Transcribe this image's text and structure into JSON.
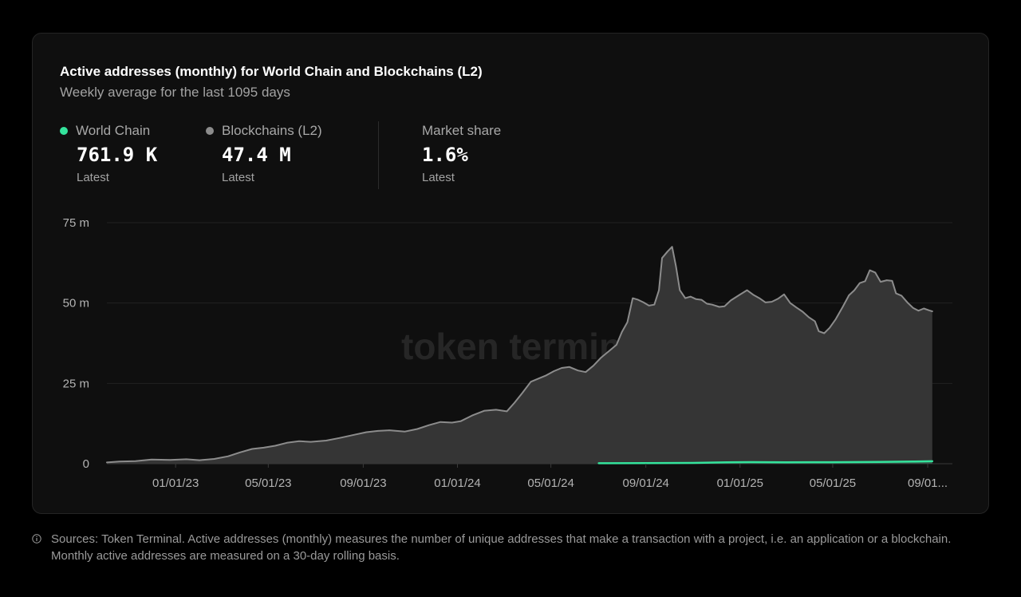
{
  "header": {
    "title": "Active addresses (monthly) for World Chain and Blockchains (L2)",
    "subtitle": "Weekly average for the last 1095 days"
  },
  "stats": [
    {
      "name": "World Chain",
      "value": "761.9 K",
      "sub": "Latest",
      "color": "#34e39c"
    },
    {
      "name": "Blockchains (L2)",
      "value": "47.4 M",
      "sub": "Latest",
      "color": "#8c8c8c"
    },
    {
      "name": "Market share",
      "value": "1.6%",
      "sub": "Latest"
    }
  ],
  "watermark": "token terminal_",
  "chart_data": {
    "type": "area",
    "ylim": [
      0,
      75000000
    ],
    "y_ticks": [
      {
        "value": 0,
        "label": "0"
      },
      {
        "value": 25000000,
        "label": "25 m"
      },
      {
        "value": 50000000,
        "label": "50 m"
      },
      {
        "value": 75000000,
        "label": "75 m"
      }
    ],
    "x_range": [
      "2022-10-04",
      "2025-10-03"
    ],
    "x_ticks": [
      {
        "date": "2023-01-01",
        "label": "01/01/23"
      },
      {
        "date": "2023-05-01",
        "label": "05/01/23"
      },
      {
        "date": "2023-09-01",
        "label": "09/01/23"
      },
      {
        "date": "2024-01-01",
        "label": "01/01/24"
      },
      {
        "date": "2024-05-01",
        "label": "05/01/24"
      },
      {
        "date": "2024-09-01",
        "label": "09/01/24"
      },
      {
        "date": "2025-01-01",
        "label": "01/01/25"
      },
      {
        "date": "2025-05-01",
        "label": "05/01/25"
      },
      {
        "date": "2025-09-01",
        "label": "09/01..."
      }
    ],
    "series": [
      {
        "name": "Blockchains (L2)",
        "color": "#8c8c8c",
        "points": [
          [
            "2022-10-04",
            400000
          ],
          [
            "2022-10-20",
            700000
          ],
          [
            "2022-11-10",
            800000
          ],
          [
            "2022-12-01",
            1300000
          ],
          [
            "2022-12-25",
            1200000
          ],
          [
            "2023-01-15",
            1400000
          ],
          [
            "2023-02-01",
            1100000
          ],
          [
            "2023-02-20",
            1500000
          ],
          [
            "2023-03-10",
            2300000
          ],
          [
            "2023-03-25",
            3500000
          ],
          [
            "2023-04-10",
            4600000
          ],
          [
            "2023-04-25",
            5000000
          ],
          [
            "2023-05-10",
            5600000
          ],
          [
            "2023-05-25",
            6500000
          ],
          [
            "2023-06-10",
            7000000
          ],
          [
            "2023-06-25",
            6800000
          ],
          [
            "2023-07-15",
            7200000
          ],
          [
            "2023-08-01",
            8000000
          ],
          [
            "2023-08-20",
            9000000
          ],
          [
            "2023-09-05",
            9800000
          ],
          [
            "2023-09-20",
            10200000
          ],
          [
            "2023-10-05",
            10400000
          ],
          [
            "2023-10-25",
            10000000
          ],
          [
            "2023-11-10",
            10800000
          ],
          [
            "2023-11-25",
            12000000
          ],
          [
            "2023-12-10",
            13000000
          ],
          [
            "2023-12-25",
            12800000
          ],
          [
            "2024-01-05",
            13200000
          ],
          [
            "2024-01-20",
            15000000
          ],
          [
            "2024-02-05",
            16500000
          ],
          [
            "2024-02-20",
            16800000
          ],
          [
            "2024-03-05",
            16300000
          ],
          [
            "2024-03-15",
            19000000
          ],
          [
            "2024-03-25",
            22000000
          ],
          [
            "2024-04-05",
            25500000
          ],
          [
            "2024-04-15",
            26500000
          ],
          [
            "2024-04-25",
            27500000
          ],
          [
            "2024-05-05",
            28800000
          ],
          [
            "2024-05-15",
            29800000
          ],
          [
            "2024-05-25",
            30100000
          ],
          [
            "2024-06-05",
            29000000
          ],
          [
            "2024-06-15",
            28500000
          ],
          [
            "2024-06-25",
            30500000
          ],
          [
            "2024-07-05",
            33000000
          ],
          [
            "2024-07-15",
            35000000
          ],
          [
            "2024-07-25",
            37000000
          ],
          [
            "2024-08-01",
            41000000
          ],
          [
            "2024-08-08",
            44000000
          ],
          [
            "2024-08-15",
            51500000
          ],
          [
            "2024-08-22",
            51000000
          ],
          [
            "2024-08-29",
            50200000
          ],
          [
            "2024-09-05",
            49200000
          ],
          [
            "2024-09-12",
            49500000
          ],
          [
            "2024-09-18",
            54000000
          ],
          [
            "2024-09-22",
            64000000
          ],
          [
            "2024-09-29",
            66000000
          ],
          [
            "2024-10-05",
            67500000
          ],
          [
            "2024-10-10",
            61500000
          ],
          [
            "2024-10-15",
            54000000
          ],
          [
            "2024-10-22",
            51500000
          ],
          [
            "2024-10-29",
            52000000
          ],
          [
            "2024-11-05",
            51200000
          ],
          [
            "2024-11-12",
            51000000
          ],
          [
            "2024-11-19",
            49800000
          ],
          [
            "2024-11-26",
            49500000
          ],
          [
            "2024-12-05",
            48800000
          ],
          [
            "2024-12-12",
            49000000
          ],
          [
            "2024-12-20",
            50800000
          ],
          [
            "2024-12-31",
            52500000
          ],
          [
            "2025-01-10",
            54000000
          ],
          [
            "2025-01-18",
            52600000
          ],
          [
            "2025-01-26",
            51500000
          ],
          [
            "2025-02-03",
            50200000
          ],
          [
            "2025-02-11",
            50400000
          ],
          [
            "2025-02-19",
            51300000
          ],
          [
            "2025-02-27",
            52700000
          ],
          [
            "2025-03-07",
            50000000
          ],
          [
            "2025-03-15",
            48600000
          ],
          [
            "2025-03-23",
            47300000
          ],
          [
            "2025-03-31",
            45600000
          ],
          [
            "2025-04-08",
            44300000
          ],
          [
            "2025-04-13",
            41200000
          ],
          [
            "2025-04-20",
            40600000
          ],
          [
            "2025-04-27",
            42300000
          ],
          [
            "2025-05-05",
            45000000
          ],
          [
            "2025-05-14",
            48800000
          ],
          [
            "2025-05-22",
            52400000
          ],
          [
            "2025-05-29",
            54000000
          ],
          [
            "2025-06-05",
            56200000
          ],
          [
            "2025-06-12",
            56800000
          ],
          [
            "2025-06-18",
            60200000
          ],
          [
            "2025-06-25",
            59500000
          ],
          [
            "2025-07-02",
            56600000
          ],
          [
            "2025-07-10",
            57100000
          ],
          [
            "2025-07-17",
            56900000
          ],
          [
            "2025-07-22",
            53000000
          ],
          [
            "2025-07-29",
            52300000
          ],
          [
            "2025-08-06",
            50100000
          ],
          [
            "2025-08-13",
            48500000
          ],
          [
            "2025-08-20",
            47600000
          ],
          [
            "2025-08-27",
            48300000
          ],
          [
            "2025-09-03",
            47700000
          ],
          [
            "2025-09-07",
            47400000
          ]
        ]
      },
      {
        "name": "World Chain",
        "color": "#34e39c",
        "points": [
          [
            "2024-07-02",
            150000
          ],
          [
            "2024-09-01",
            200000
          ],
          [
            "2024-11-01",
            250000
          ],
          [
            "2024-12-15",
            450000
          ],
          [
            "2025-01-15",
            500000
          ],
          [
            "2025-03-01",
            450000
          ],
          [
            "2025-05-01",
            480000
          ],
          [
            "2025-07-01",
            550000
          ],
          [
            "2025-08-15",
            700000
          ],
          [
            "2025-09-07",
            761900
          ]
        ]
      }
    ]
  },
  "footnote": "Sources: Token Terminal. Active addresses (monthly) measures the number of unique addresses that make a transaction with a project, i.e. an application or a blockchain. Monthly active addresses are measured on a 30-day rolling basis."
}
